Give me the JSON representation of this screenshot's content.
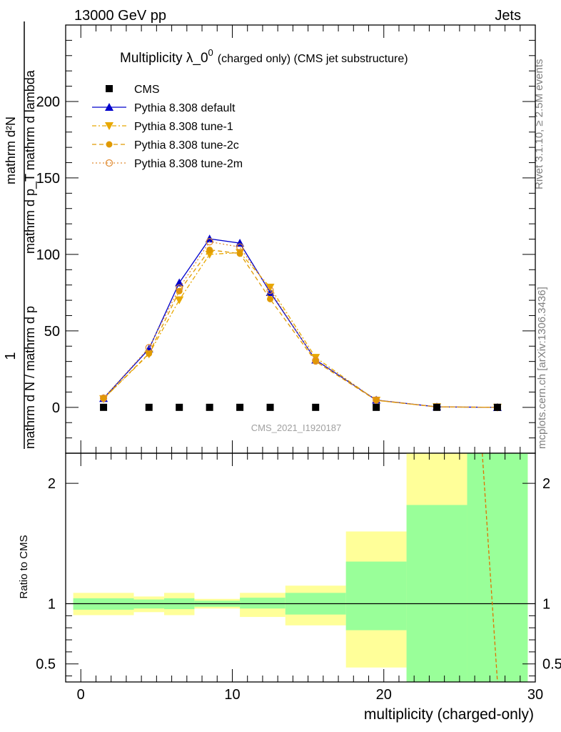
{
  "header": {
    "left": "13000 GeV pp",
    "right": "Jets",
    "side_top": "Rivet 3.1.10, ≥ 2.5M events",
    "side_bottom": "mcplots.cern.ch [arXiv:1306.3436]"
  },
  "chart_data": [
    {
      "type": "line",
      "title": "Multiplicity λ_0^0 (charged only) (CMS jet substructure)",
      "title_main": "Multiplicity λ_0",
      "title_sup": "0",
      "title_rest": "(charged only) (CMS jet substructure)",
      "ylabel": "1 / mathrm d N / mathrm d p_T mathrm d^2N / mathrm d p_T mathrm d lambda",
      "ylabel_parts": {
        "num_one": "1",
        "den_left": "mathrm d N / mathrm d p",
        "num_right": "mathrm d²N",
        "den_right": "mathrm d p_T mathrm d lambda"
      },
      "xlim": [
        -1,
        30
      ],
      "ylim": [
        -30,
        250
      ],
      "y_ticks": [
        0,
        50,
        100,
        150,
        200
      ],
      "watermark": "CMS_2021_I1920187",
      "legend_position": "top-left",
      "x": [
        1.5,
        4.5,
        6.5,
        8.5,
        10.5,
        12.5,
        15.5,
        19.5,
        23.5,
        27.5
      ],
      "series": [
        {
          "name": "CMS",
          "style": "data",
          "color": "#000000",
          "values": [
            0,
            0,
            0,
            0,
            0,
            0,
            0,
            0,
            0,
            0
          ]
        },
        {
          "name": "Pythia 8.308 default",
          "style": "line",
          "marker": "triangle",
          "color": "#0000cc",
          "values": [
            5.9,
            38.2,
            81.5,
            110.2,
            107.4,
            75.2,
            31.0,
            4.8,
            0.3,
            0.0
          ]
        },
        {
          "name": "Pythia 8.308 tune-1",
          "style": "dashdot",
          "marker": "triangle-down",
          "color": "#e8a800",
          "values": [
            5.6,
            34.8,
            70.2,
            100.0,
            101.2,
            78.5,
            32.6,
            4.6,
            0.3,
            0.0
          ]
        },
        {
          "name": "Pythia 8.308 tune-2c",
          "style": "dashed",
          "marker": "circle",
          "color": "#e09a00",
          "values": [
            5.7,
            35.2,
            76.0,
            103.0,
            100.5,
            70.8,
            30.0,
            4.6,
            0.3,
            0.0
          ]
        },
        {
          "name": "Pythia 8.308 tune-2m",
          "style": "dotted",
          "marker": "circle-open",
          "color": "#e08a30",
          "values": [
            6.0,
            39.0,
            78.0,
            108.3,
            104.8,
            76.5,
            30.6,
            4.8,
            0.3,
            0.0
          ]
        }
      ]
    },
    {
      "type": "area",
      "ylabel": "Ratio to CMS",
      "xlabel": "multiplicity (charged-only)",
      "xlim": [
        -1,
        30
      ],
      "ylim": [
        0.35,
        2.25
      ],
      "x_ticks": [
        0,
        10,
        20,
        30
      ],
      "y_ticks": [
        0.5,
        1,
        2
      ],
      "y_tick_labels": [
        "0.5",
        "1",
        "2"
      ],
      "reference_line": 1,
      "bins": [
        {
          "x0": -0.5,
          "x1": 3.5,
          "yellow": [
            0.905,
            1.09
          ],
          "green": [
            0.95,
            1.045
          ]
        },
        {
          "x0": 3.5,
          "x1": 5.5,
          "yellow": [
            0.93,
            1.06
          ],
          "green": [
            0.96,
            1.035
          ]
        },
        {
          "x0": 5.5,
          "x1": 7.5,
          "yellow": [
            0.905,
            1.09
          ],
          "green": [
            0.955,
            1.045
          ]
        },
        {
          "x0": 7.5,
          "x1": 10.5,
          "yellow": [
            0.96,
            1.04
          ],
          "green": [
            0.975,
            1.025
          ]
        },
        {
          "x0": 10.5,
          "x1": 13.5,
          "yellow": [
            0.89,
            1.09
          ],
          "green": [
            0.96,
            1.05
          ]
        },
        {
          "x0": 13.5,
          "x1": 17.5,
          "yellow": [
            0.82,
            1.15
          ],
          "green": [
            0.91,
            1.09
          ]
        },
        {
          "x0": 17.5,
          "x1": 21.5,
          "yellow": [
            0.47,
            1.6
          ],
          "green": [
            0.78,
            1.35
          ]
        },
        {
          "x0": 21.5,
          "x1": 25.5,
          "yellow": [
            0.35,
            2.25
          ],
          "green": [
            0.35,
            1.82
          ]
        },
        {
          "x0": 25.5,
          "x1": 29.5,
          "yellow": [
            0.35,
            2.25
          ],
          "green": [
            0.35,
            2.25
          ]
        }
      ],
      "tune_line": {
        "color": "#e07000",
        "points": [
          [
            26.5,
            2.25
          ],
          [
            27.5,
            0.35
          ]
        ]
      }
    }
  ]
}
